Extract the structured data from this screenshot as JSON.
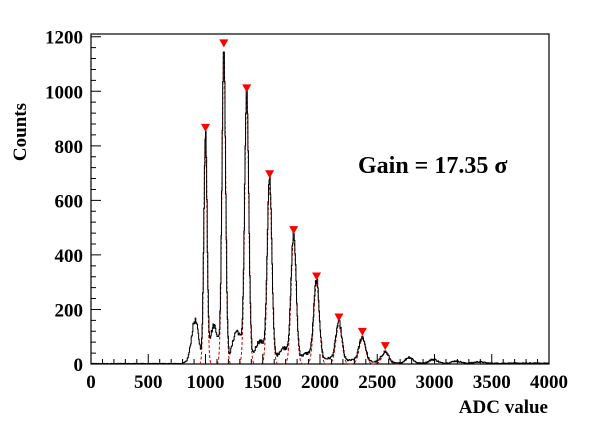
{
  "chart_data": {
    "type": "line",
    "xlabel": "ADC value",
    "ylabel": "Counts",
    "xlim": [
      0,
      4000
    ],
    "ylim": [
      0,
      1210
    ],
    "x_ticks": [
      0,
      500,
      1000,
      1500,
      2000,
      2500,
      3000,
      3500,
      4000
    ],
    "x_tick_labels": [
      "0",
      "500",
      "1000",
      "1500",
      "2000",
      "2500",
      "3000",
      "3500",
      "4000"
    ],
    "y_ticks": [
      0,
      200,
      400,
      600,
      800,
      1000,
      1200
    ],
    "y_tick_labels": [
      "0",
      "200",
      "400",
      "600",
      "800",
      "1000",
      "1200"
    ],
    "annotation": "Gain = 17.35  σ",
    "grid": false,
    "legend": "none",
    "peaks": {
      "x": [
        1000,
        1160,
        1360,
        1560,
        1770,
        1970,
        2165,
        2370,
        2570
      ],
      "y": [
        840,
        1150,
        985,
        670,
        465,
        295,
        145,
        92,
        40
      ],
      "sigma": [
        14,
        16,
        18,
        20,
        22,
        24,
        26,
        28,
        30
      ]
    },
    "series": [
      {
        "role": "histogram",
        "color": "#000000"
      },
      {
        "role": "peak-fits",
        "color": "#cc0000"
      },
      {
        "role": "peak-markers",
        "color": "#ff0000"
      }
    ]
  }
}
